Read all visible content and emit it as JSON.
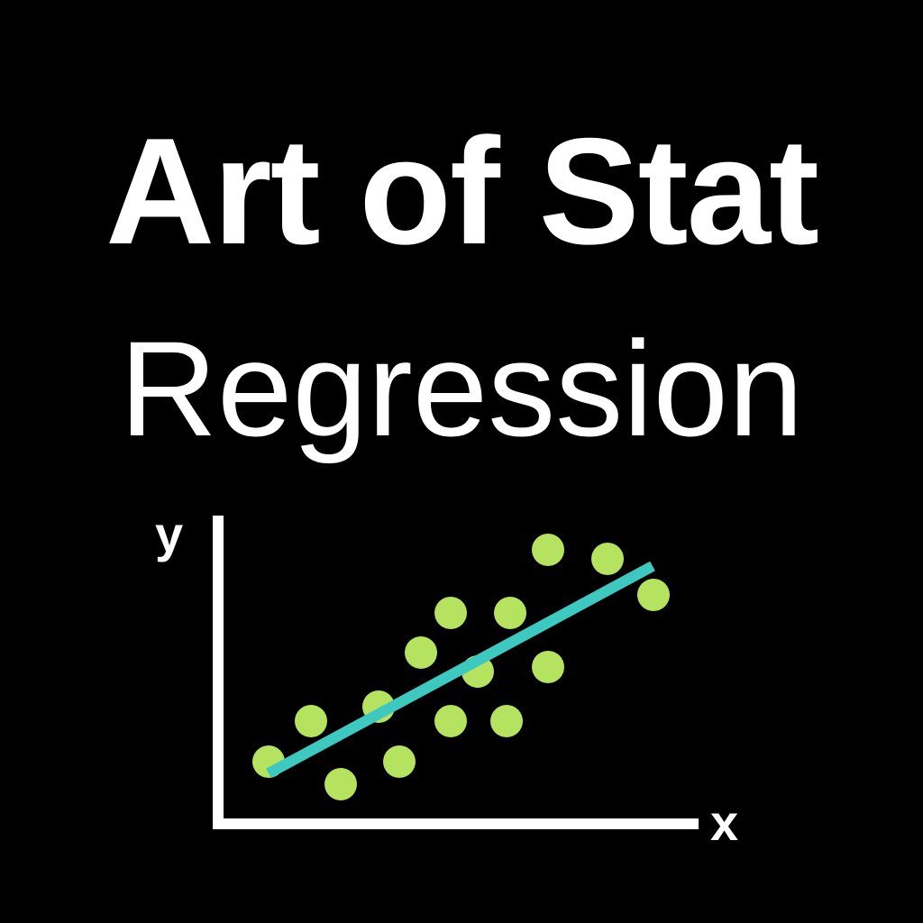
{
  "title": "Art of Stat",
  "subtitle": "Regression",
  "colors": {
    "background": "#000000",
    "text": "#ffffff",
    "axis": "#ffffff",
    "points": "#b5e35f",
    "line": "#3ec9c0"
  },
  "axes": {
    "x_label": "x",
    "y_label": "y"
  }
}
